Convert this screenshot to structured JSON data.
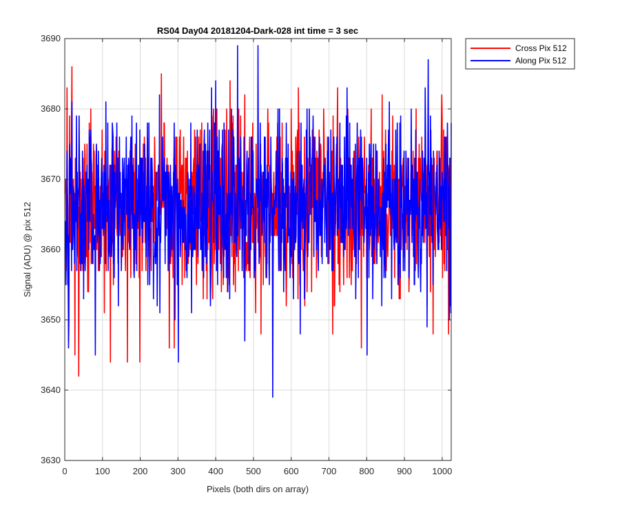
{
  "chart_data": {
    "type": "line",
    "title": "RS04 Day04 20181204-Dark-028 int time = 3 sec",
    "xlabel": "Pixels (both dirs on array)",
    "ylabel": "Signal (ADU) @ pix 512",
    "xlim": [
      0,
      1024
    ],
    "ylim": [
      3630,
      3690
    ],
    "xticks": [
      0,
      100,
      200,
      300,
      400,
      500,
      600,
      700,
      800,
      900,
      1000
    ],
    "yticks": [
      3630,
      3640,
      3650,
      3660,
      3670,
      3680,
      3690
    ],
    "grid": true,
    "legend_position": "outside-top-right",
    "noise_model": {
      "num_points": 1024,
      "mean": 3666,
      "std": 6.2,
      "min": 3639,
      "max": 3689
    },
    "series": [
      {
        "name": "Cross Pix 512",
        "color": "#ff0000",
        "seed": 17,
        "key_points": [
          {
            "x": 5,
            "y": 3683
          },
          {
            "x": 9,
            "y": 3647
          },
          {
            "x": 18,
            "y": 3686
          },
          {
            "x": 36,
            "y": 3642
          },
          {
            "x": 26,
            "y": 3645
          },
          {
            "x": 120,
            "y": 3644
          },
          {
            "x": 165,
            "y": 3644
          },
          {
            "x": 198,
            "y": 3644
          },
          {
            "x": 255,
            "y": 3685
          },
          {
            "x": 276,
            "y": 3646
          },
          {
            "x": 437,
            "y": 3684
          },
          {
            "x": 476,
            "y": 3682
          },
          {
            "x": 785,
            "y": 3646
          },
          {
            "x": 975,
            "y": 3648
          },
          {
            "x": 1016,
            "y": 3648
          }
        ]
      },
      {
        "name": "Along Pix 512",
        "color": "#0000ff",
        "seed": 42,
        "key_points": [
          {
            "x": 3,
            "y": 3660
          },
          {
            "x": 10,
            "y": 3650
          },
          {
            "x": 80,
            "y": 3645
          },
          {
            "x": 300,
            "y": 3644
          },
          {
            "x": 457,
            "y": 3689
          },
          {
            "x": 476,
            "y": 3647
          },
          {
            "x": 511,
            "y": 3689
          },
          {
            "x": 550,
            "y": 3639
          },
          {
            "x": 800,
            "y": 3645
          },
          {
            "x": 962,
            "y": 3687
          },
          {
            "x": 1020,
            "y": 3652
          }
        ]
      }
    ]
  }
}
